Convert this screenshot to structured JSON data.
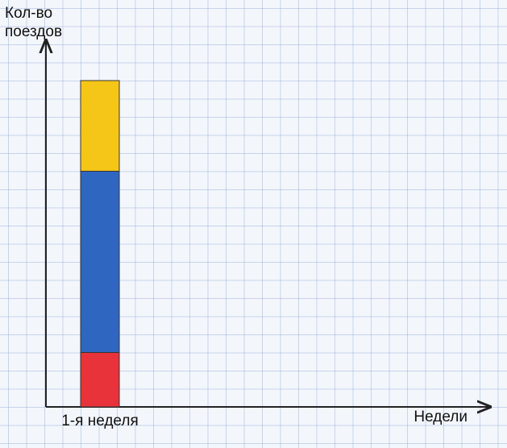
{
  "chart_data": {
    "type": "stacked_bar",
    "y_label": [
      "Кол-во",
      "поездов"
    ],
    "x_label": "Недели",
    "categories": [
      "1-я неделя"
    ],
    "series": [
      {
        "color": "#e8333a",
        "values": [
          3
        ]
      },
      {
        "color": "#2f67c0",
        "values": [
          10
        ]
      },
      {
        "color": "#f5c518",
        "values": [
          5
        ]
      }
    ],
    "ylim": [
      0,
      20
    ]
  }
}
